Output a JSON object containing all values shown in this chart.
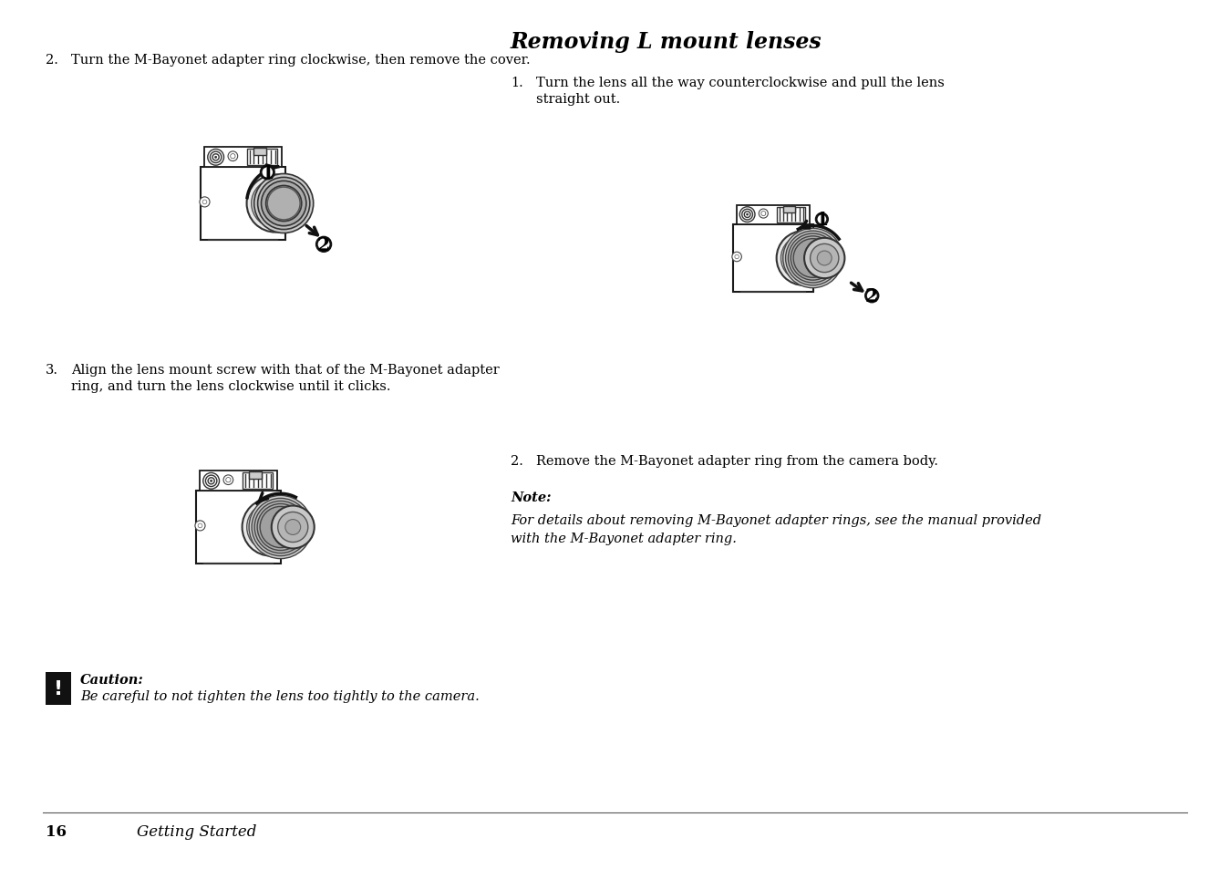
{
  "bg_color": "#ffffff",
  "text_color": "#000000",
  "page_number": "16",
  "page_section": "Getting Started",
  "step2_text": "Turn the M-Bayonet adapter ring clockwise, then remove the cover.",
  "step3_text": "Align the lens mount screw with that of the M-Bayonet adapter\nring, and turn the lens clockwise until it clicks.",
  "right_title": "Removing L mount lenses",
  "right_step1_text": "Turn the lens all the way counterclockwise and pull the lens\nstraight out.",
  "right_step2_text": "Remove the M-Bayonet adapter ring from the camera body.",
  "note_label": "Note:",
  "note_text": "For details about removing M-Bayonet adapter rings, see the manual provided\nwith the M-Bayonet adapter ring.",
  "caution_label": "Caution:",
  "caution_text": "Be careful to not tighten the lens too tightly to the camera.",
  "font_size_body": 10.5,
  "font_size_title": 17,
  "font_size_footer": 12
}
